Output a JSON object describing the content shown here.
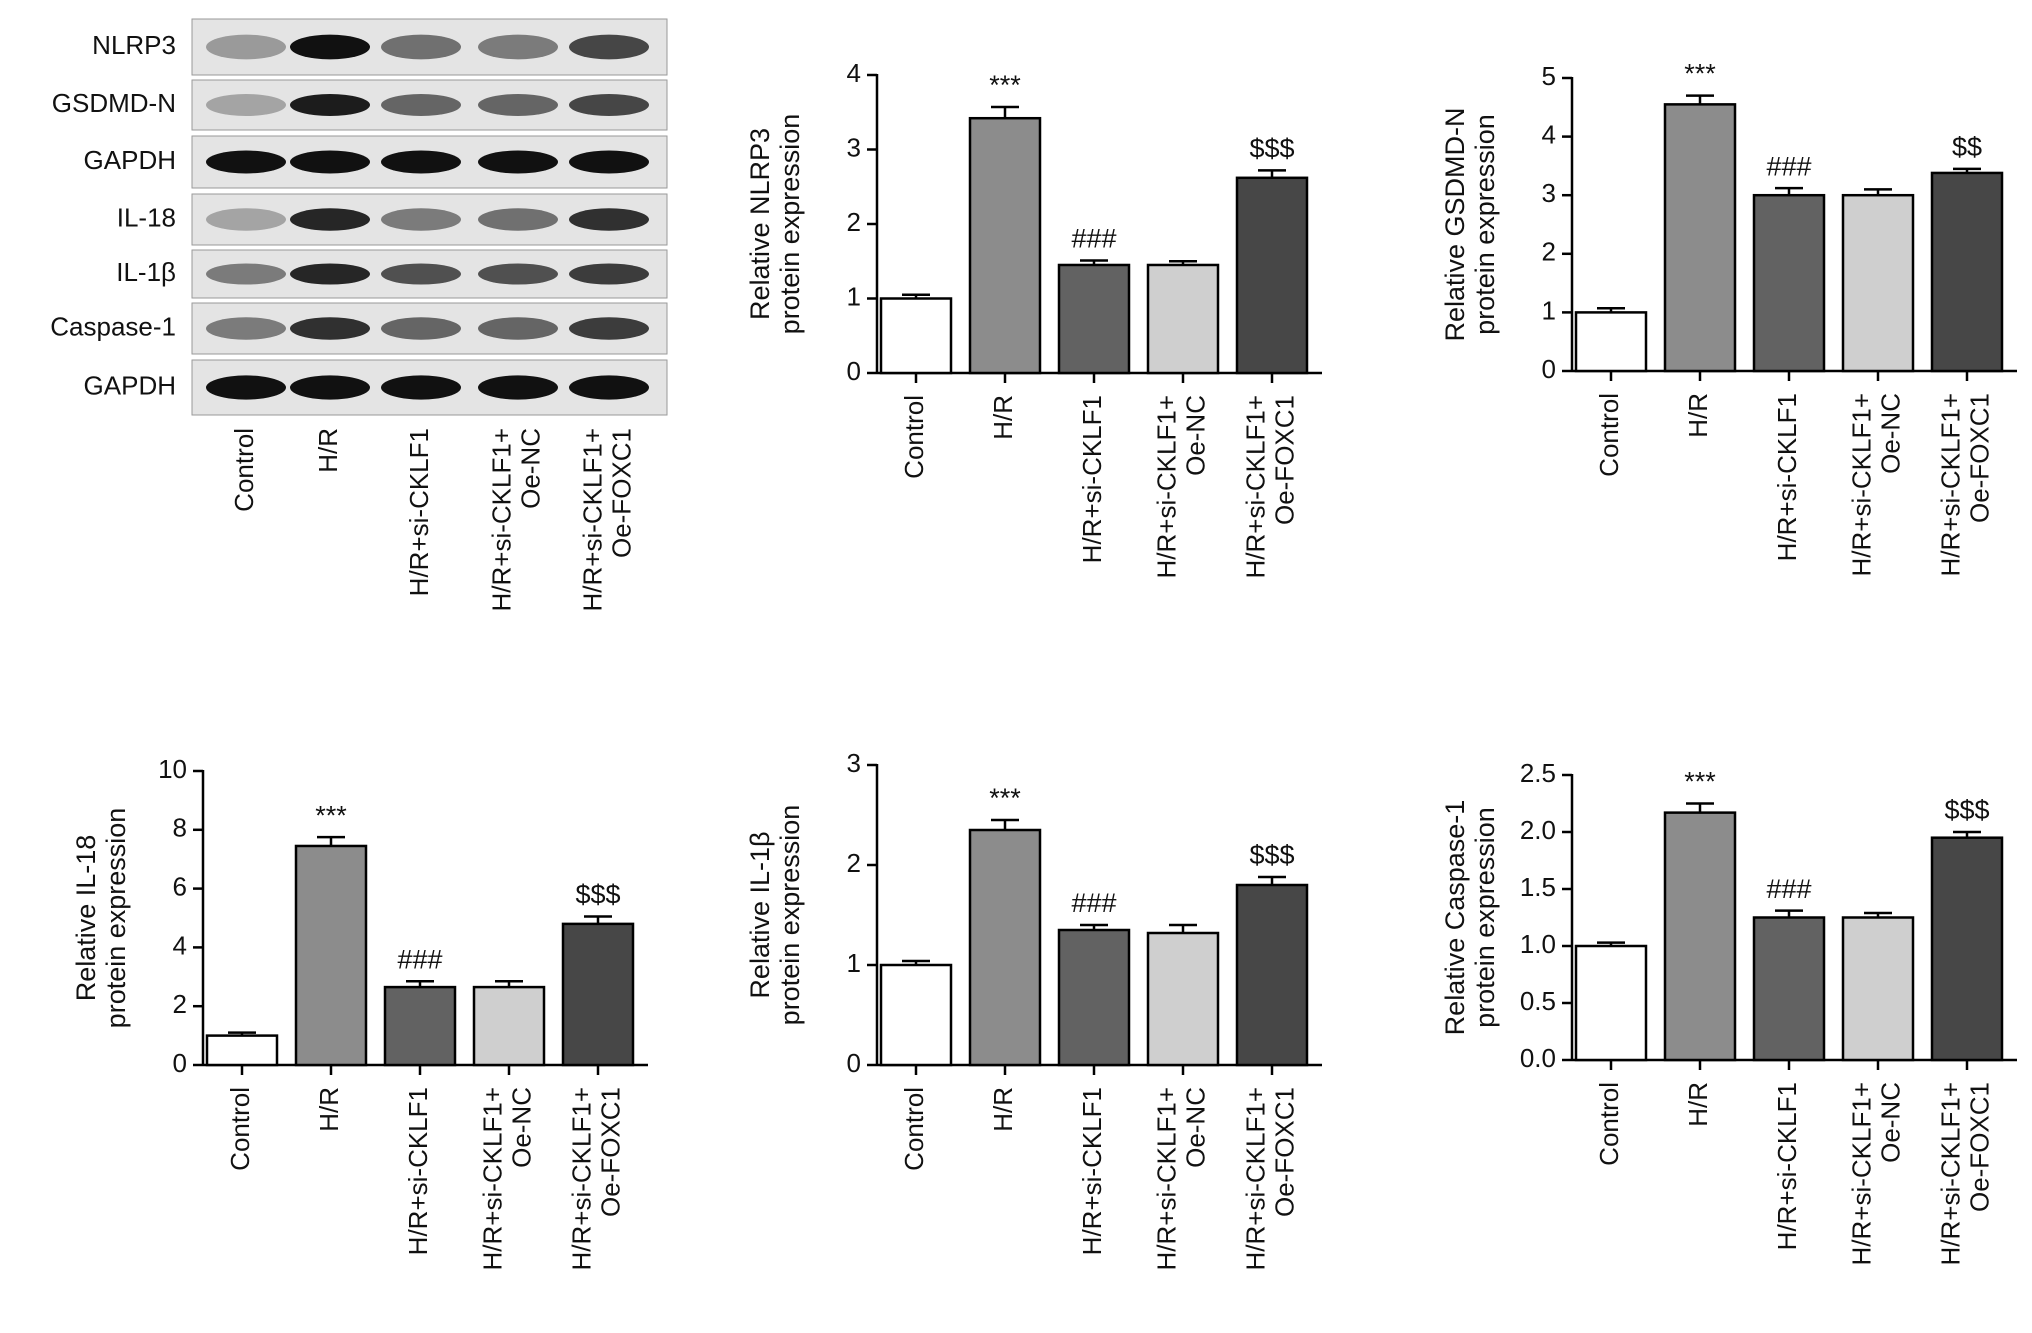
{
  "blot": {
    "rows": [
      "NLRP3",
      "GSDMD-N",
      "GAPDH",
      "IL-18",
      "IL-1β",
      "Caspase-1",
      "GAPDH"
    ],
    "lanes": [
      "Control",
      "H/R",
      "H/R+si-CKLF1",
      "H/R+si-CKLF1+\nOe-NC",
      "H/R+si-CKLF1+\nOe-FOXC1"
    ]
  },
  "chart_data": [
    {
      "type": "bar",
      "y_label": "Relative NLRP3\nprotein expression",
      "categories": [
        "Control",
        "H/R",
        "H/R+si-CKLF1",
        "H/R+si-CKLF1+\nOe-NC",
        "H/R+si-CKLF1+\nOe-FOXC1"
      ],
      "values": [
        1.0,
        3.42,
        1.45,
        1.45,
        2.62
      ],
      "errors": [
        0.05,
        0.15,
        0.06,
        0.05,
        0.1
      ],
      "annotations": [
        null,
        "***",
        "###",
        null,
        "$$$"
      ],
      "colors": [
        "#ffffff",
        "#8c8c8c",
        "#626262",
        "#cfcfcf",
        "#474747"
      ],
      "ylim": [
        0,
        4
      ],
      "yticks": [
        0,
        1,
        2,
        3,
        4
      ]
    },
    {
      "type": "bar",
      "y_label": "Relative GSDMD-N\nprotein expression",
      "categories": [
        "Control",
        "H/R",
        "H/R+si-CKLF1",
        "H/R+si-CKLF1+\nOe-NC",
        "H/R+si-CKLF1+\nOe-FOXC1"
      ],
      "values": [
        1.0,
        4.55,
        3.0,
        3.0,
        3.38
      ],
      "errors": [
        0.07,
        0.15,
        0.12,
        0.1,
        0.07
      ],
      "annotations": [
        null,
        "***",
        "###",
        null,
        "$$"
      ],
      "colors": [
        "#ffffff",
        "#8c8c8c",
        "#626262",
        "#cfcfcf",
        "#474747"
      ],
      "ylim": [
        0,
        5
      ],
      "yticks": [
        0,
        1,
        2,
        3,
        4,
        5
      ]
    },
    {
      "type": "bar",
      "y_label": "Relative IL-18\nprotein expression",
      "categories": [
        "Control",
        "H/R",
        "H/R+si-CKLF1",
        "H/R+si-CKLF1+\nOe-NC",
        "H/R+si-CKLF1+\nOe-FOXC1"
      ],
      "values": [
        1.0,
        7.45,
        2.65,
        2.65,
        4.8
      ],
      "errors": [
        0.1,
        0.3,
        0.2,
        0.2,
        0.25
      ],
      "annotations": [
        null,
        "***",
        "###",
        null,
        "$$$"
      ],
      "colors": [
        "#ffffff",
        "#8c8c8c",
        "#626262",
        "#cfcfcf",
        "#474747"
      ],
      "ylim": [
        0,
        10
      ],
      "yticks": [
        0,
        2,
        4,
        6,
        8,
        10
      ]
    },
    {
      "type": "bar",
      "y_label": "Relative IL-1β\nprotein expression",
      "categories": [
        "Control",
        "H/R",
        "H/R+si-CKLF1",
        "H/R+si-CKLF1+\nOe-NC",
        "H/R+si-CKLF1+\nOe-FOXC1"
      ],
      "values": [
        1.0,
        2.35,
        1.35,
        1.32,
        1.8
      ],
      "errors": [
        0.04,
        0.1,
        0.05,
        0.08,
        0.08
      ],
      "annotations": [
        null,
        "***",
        "###",
        null,
        "$$$"
      ],
      "colors": [
        "#ffffff",
        "#8c8c8c",
        "#626262",
        "#cfcfcf",
        "#474747"
      ],
      "ylim": [
        0,
        3
      ],
      "yticks": [
        0,
        1,
        2,
        3
      ]
    },
    {
      "type": "bar",
      "y_label": "Relative Caspase-1\nprotein expression",
      "categories": [
        "Control",
        "H/R",
        "H/R+si-CKLF1",
        "H/R+si-CKLF1+\nOe-NC",
        "H/R+si-CKLF1+\nOe-FOXC1"
      ],
      "values": [
        1.0,
        2.17,
        1.25,
        1.25,
        1.95
      ],
      "errors": [
        0.03,
        0.08,
        0.06,
        0.04,
        0.05
      ],
      "annotations": [
        null,
        "***",
        "###",
        null,
        "$$$"
      ],
      "colors": [
        "#ffffff",
        "#8c8c8c",
        "#626262",
        "#cfcfcf",
        "#474747"
      ],
      "ylim": [
        0,
        2.5
      ],
      "yticks": [
        {
          "value": 0,
          "label": "0.0"
        },
        0.5,
        {
          "value": 1,
          "label": "1.0"
        },
        1.5,
        {
          "value": 2,
          "label": "2.0"
        },
        2.5
      ]
    }
  ]
}
